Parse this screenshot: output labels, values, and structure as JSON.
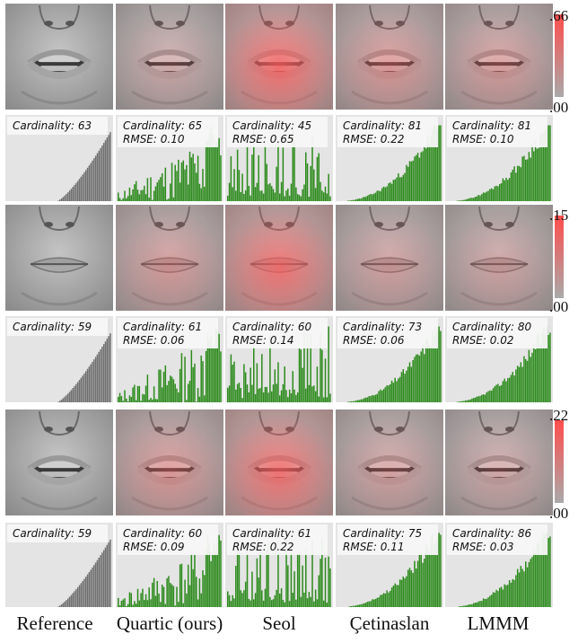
{
  "columns": [
    "Reference",
    "Quartic (ours)",
    "Seol",
    "Çetinaslan",
    "LMMM"
  ],
  "rows": [
    {
      "scale": {
        "max": ".66",
        "min": ".00"
      },
      "intensity": [
        0.0,
        0.18,
        0.75,
        0.35,
        0.3
      ],
      "mouth": "open",
      "histograms": [
        {
          "cardinality": "Cardinality: 63",
          "rmse": "",
          "kind": "ref",
          "seed": 3
        },
        {
          "cardinality": "Cardinality: 65",
          "rmse": "RMSE:  0.10",
          "kind": "noisy",
          "seed": 11
        },
        {
          "cardinality": "Cardinality: 45",
          "rmse": "RMSE:  0.65",
          "kind": "spiky",
          "seed": 17
        },
        {
          "cardinality": "Cardinality: 81",
          "rmse": "RMSE:  0.22",
          "kind": "smooth",
          "seed": 23
        },
        {
          "cardinality": "Cardinality: 81",
          "rmse": "RMSE:  0.10",
          "kind": "smooth",
          "seed": 29
        }
      ]
    },
    {
      "scale": {
        "max": ".15",
        "min": ".00"
      },
      "intensity": [
        0.0,
        0.3,
        0.7,
        0.25,
        0.22
      ],
      "mouth": "closed",
      "histograms": [
        {
          "cardinality": "Cardinality: 59",
          "rmse": "",
          "kind": "ref",
          "seed": 5
        },
        {
          "cardinality": "Cardinality: 61",
          "rmse": "RMSE:  0.06",
          "kind": "noisy",
          "seed": 13
        },
        {
          "cardinality": "Cardinality: 60",
          "rmse": "RMSE:  0.14",
          "kind": "spiky",
          "seed": 19
        },
        {
          "cardinality": "Cardinality: 73",
          "rmse": "RMSE:  0.06",
          "kind": "smooth",
          "seed": 31
        },
        {
          "cardinality": "Cardinality: 80",
          "rmse": "RMSE:  0.02",
          "kind": "smooth",
          "seed": 37
        }
      ]
    },
    {
      "scale": {
        "max": ".22",
        "min": ".00"
      },
      "intensity": [
        0.0,
        0.35,
        0.7,
        0.25,
        0.2
      ],
      "mouth": "open",
      "histograms": [
        {
          "cardinality": "Cardinality: 59",
          "rmse": "",
          "kind": "ref",
          "seed": 7
        },
        {
          "cardinality": "Cardinality: 60",
          "rmse": "RMSE:  0.09",
          "kind": "noisy",
          "seed": 41
        },
        {
          "cardinality": "Cardinality: 61",
          "rmse": "RMSE:  0.22",
          "kind": "spiky",
          "seed": 43
        },
        {
          "cardinality": "Cardinality: 75",
          "rmse": "RMSE:  0.11",
          "kind": "smooth",
          "seed": 47
        },
        {
          "cardinality": "Cardinality: 86",
          "rmse": "RMSE:  0.03",
          "kind": "smooth",
          "seed": 53
        }
      ]
    }
  ],
  "colors": {
    "skin": "#a9a9a9",
    "error": "#ff5a5a",
    "panel_bg": "#e4e4e4",
    "ref_bar": "#707070",
    "bar": "#2e8b1e",
    "label_bg": "#f7f7f7"
  }
}
